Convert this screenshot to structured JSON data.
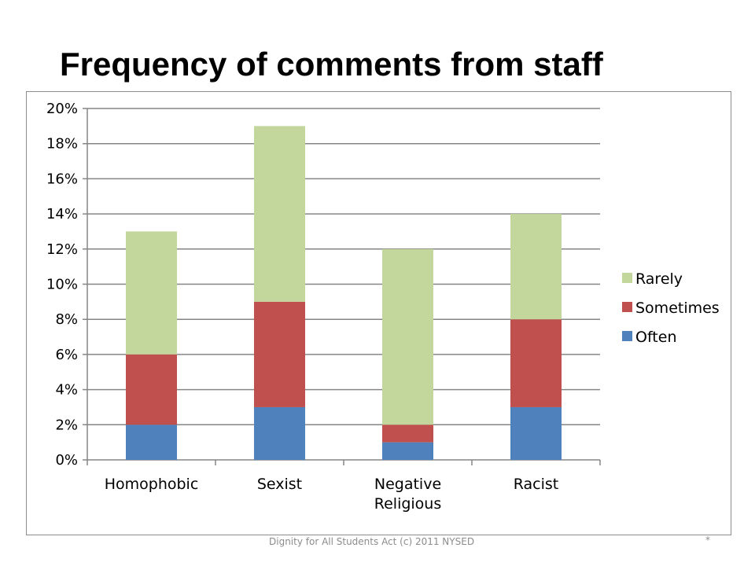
{
  "slide": {
    "title": "Frequency of comments from staff",
    "footer": "Dignity for All Students Act (c) 2011 NYSED",
    "slide_number": "*"
  },
  "colors": {
    "Often": "#4f81bd",
    "Sometimes": "#c0504d",
    "Rarely": "#c3d69b",
    "gridline": "#868686"
  },
  "chart_data": {
    "type": "bar",
    "stacked": true,
    "categories": [
      [
        "Homophobic"
      ],
      [
        "Sexist"
      ],
      [
        "Negative",
        "Religious"
      ],
      [
        "Racist"
      ]
    ],
    "series": [
      {
        "name": "Often",
        "values": [
          0.02,
          0.03,
          0.01,
          0.03
        ]
      },
      {
        "name": "Sometimes",
        "values": [
          0.04,
          0.06,
          0.01,
          0.05
        ]
      },
      {
        "name": "Rarely",
        "values": [
          0.07,
          0.1,
          0.1,
          0.06
        ]
      }
    ],
    "ylim": [
      0,
      0.2
    ],
    "yticks": [
      "0%",
      "2%",
      "4%",
      "6%",
      "8%",
      "10%",
      "12%",
      "14%",
      "16%",
      "18%",
      "20%"
    ],
    "legend": {
      "position": "right",
      "entries": [
        "Rarely",
        "Sometimes",
        "Often"
      ]
    },
    "grid": true
  }
}
